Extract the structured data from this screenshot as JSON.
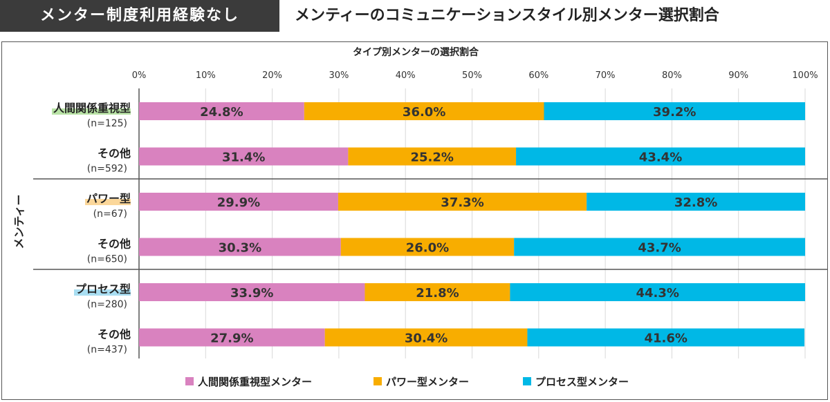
{
  "header": {
    "badge": "メンター制度利用経験なし",
    "title": "メンティーのコミュニケーションスタイル別メンター選択割合"
  },
  "chart_data": {
    "type": "bar",
    "orientation": "horizontal",
    "stacked": true,
    "title": "タイプ別メンターの選択割合",
    "ylabel": "メンティー",
    "xlim": [
      0,
      100
    ],
    "x_ticks": [
      "0%",
      "10%",
      "20%",
      "30%",
      "40%",
      "50%",
      "60%",
      "70%",
      "80%",
      "90%",
      "100%"
    ],
    "grid": true,
    "legend_position": "bottom",
    "groups": [
      {
        "name": "人間関係重視型",
        "highlight_color": "#b9e3a6",
        "rows": [
          {
            "label": "人間関係重視型",
            "n": "(n=125)",
            "highlight": true,
            "values": [
              24.8,
              36.0,
              39.2
            ],
            "value_labels": [
              "24.8%",
              "36.0%",
              "39.2%"
            ]
          },
          {
            "label": "その他",
            "n": "(n=592)",
            "highlight": false,
            "values": [
              31.4,
              25.2,
              43.4
            ],
            "value_labels": [
              "31.4%",
              "25.2%",
              "43.4%"
            ]
          }
        ]
      },
      {
        "name": "パワー型",
        "highlight_color": "#fbd79a",
        "rows": [
          {
            "label": "パワー型",
            "n": "(n=67)",
            "highlight": true,
            "values": [
              29.9,
              37.3,
              32.8
            ],
            "value_labels": [
              "29.9%",
              "37.3%",
              "32.8%"
            ]
          },
          {
            "label": "その他",
            "n": "(n=650)",
            "highlight": false,
            "values": [
              30.3,
              26.0,
              43.7
            ],
            "value_labels": [
              "30.3%",
              "26.0%",
              "43.7%"
            ]
          }
        ]
      },
      {
        "name": "プロセス型",
        "highlight_color": "#a9def2",
        "rows": [
          {
            "label": "プロセス型",
            "n": "(n=280)",
            "highlight": true,
            "values": [
              33.9,
              21.8,
              44.3
            ],
            "value_labels": [
              "33.9%",
              "21.8%",
              "44.3%"
            ]
          },
          {
            "label": "その他",
            "n": "(n=437)",
            "highlight": false,
            "values": [
              27.9,
              30.4,
              41.6
            ],
            "value_labels": [
              "27.9%",
              "30.4%",
              "41.6%"
            ]
          }
        ]
      }
    ],
    "series": [
      {
        "name": "人間関係重視型メンター",
        "color": "#d982bf"
      },
      {
        "name": "パワー型メンター",
        "color": "#f8ad00"
      },
      {
        "name": "プロセス型メンター",
        "color": "#00b8e6"
      }
    ]
  }
}
